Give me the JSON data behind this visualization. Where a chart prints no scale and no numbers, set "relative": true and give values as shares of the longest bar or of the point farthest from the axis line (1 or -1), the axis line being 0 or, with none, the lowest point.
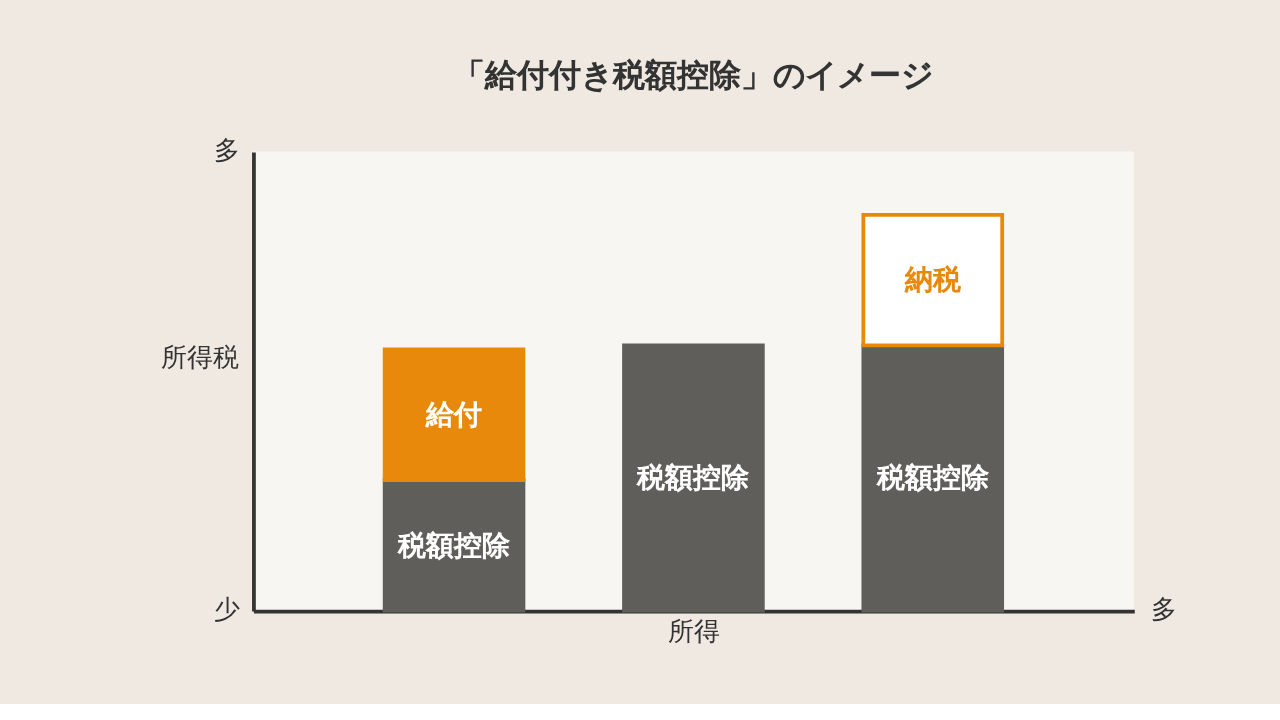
{
  "chart_data": {
    "type": "bar",
    "title": "「給付付き税額控除」のイメージ",
    "xlabel": "所得",
    "ylabel": "所得税",
    "relative": true,
    "stacked": true,
    "grid": false,
    "tick_labels": false,
    "categories": [
      null,
      null,
      null
    ],
    "series": [
      {
        "name": "税額控除",
        "color": "#5f5e5a",
        "values": [
          0.33,
          0.67,
          0.67
        ]
      },
      {
        "name": "給付",
        "color": "#e8890c",
        "values": [
          0.33,
          null,
          null
        ]
      },
      {
        "name": "納税",
        "color": "#ffffff",
        "values": [
          null,
          null,
          0.33
        ]
      }
    ],
    "annotations": [
      "多",
      "少",
      "多"
    ]
  }
}
